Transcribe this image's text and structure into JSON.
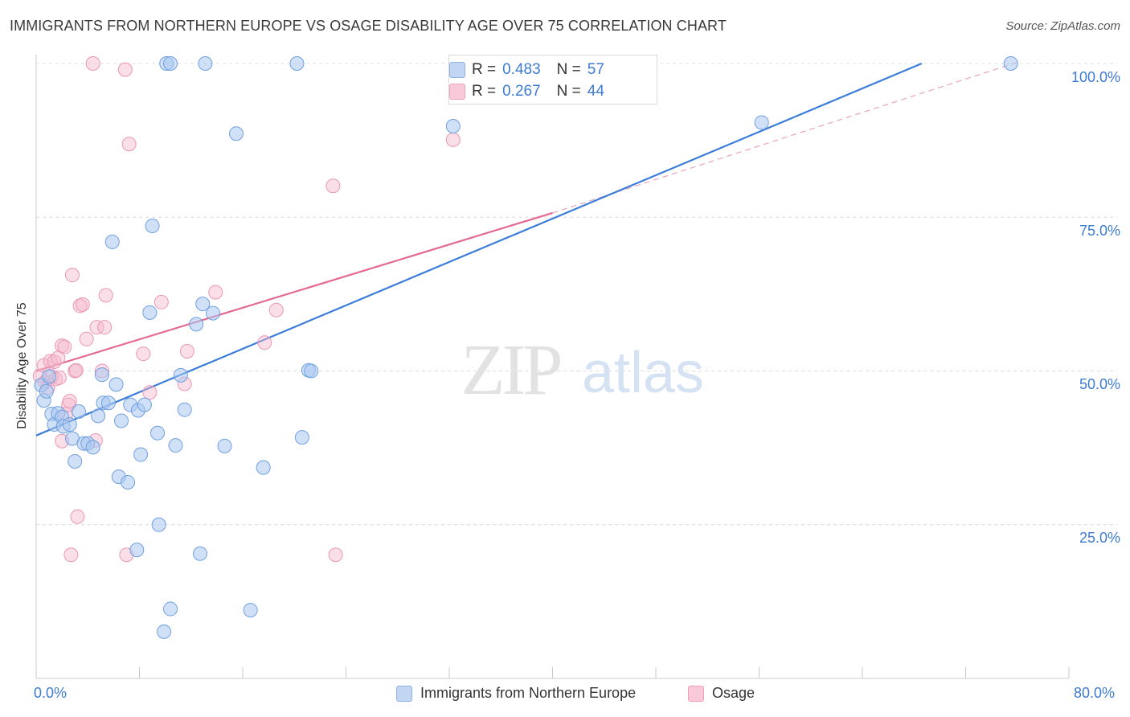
{
  "title": "IMMIGRANTS FROM NORTHERN EUROPE VS OSAGE DISABILITY AGE OVER 75 CORRELATION CHART",
  "source": "Source: ZipAtlas.com",
  "watermark": {
    "zip": "ZIP",
    "atlas": "atlas"
  },
  "colors": {
    "blue": "#3b7dd8",
    "blue_fill": "#aac8f0",
    "pink": "#e46a93",
    "pink_fill": "#f5b7cb",
    "tick_text": "#3d7bd0"
  },
  "stats": {
    "blue": {
      "r_label": "R =",
      "r_value": "0.483",
      "n_label": "N =",
      "n_value": "57"
    },
    "pink": {
      "r_label": "R =",
      "r_value": "0.267",
      "n_label": "N =",
      "n_value": "44"
    }
  },
  "legend": {
    "blue": "Immigrants from Northern Europe",
    "pink": "Osage"
  },
  "axis": {
    "x_min_label": "0.0%",
    "x_max_label": "80.0%",
    "y_tick_labels": [
      "100.0%",
      "75.0%",
      "50.0%",
      "25.0%"
    ]
  },
  "chart_data": {
    "type": "scatter",
    "title": "IMMIGRANTS FROM NORTHERN EUROPE VS OSAGE DISABILITY AGE OVER 75 CORRELATION CHART",
    "xlabel": "",
    "ylabel": "Disability Age Over 75",
    "xlim": [
      0,
      80
    ],
    "ylim": [
      0,
      100
    ],
    "x_ticks": [
      0,
      8,
      16,
      24,
      32,
      40,
      48,
      56,
      64,
      72,
      80
    ],
    "y_ticks": [
      25,
      50,
      75,
      100
    ],
    "grid": true,
    "series": [
      {
        "name": "Immigrants from Northern Europe",
        "color": "#3b7dd8",
        "points": [
          [
            0.4,
            47.7
          ],
          [
            0.6,
            45.2
          ],
          [
            0.8,
            46.7
          ],
          [
            1.0,
            49.1
          ],
          [
            1.2,
            43.0
          ],
          [
            1.4,
            41.3
          ],
          [
            1.7,
            43.1
          ],
          [
            2.0,
            42.5
          ],
          [
            2.1,
            41.0
          ],
          [
            2.6,
            41.3
          ],
          [
            2.8,
            39.0
          ],
          [
            3.0,
            35.3
          ],
          [
            3.3,
            43.4
          ],
          [
            3.7,
            38.2
          ],
          [
            4.0,
            38.2
          ],
          [
            4.4,
            37.6
          ],
          [
            4.8,
            42.7
          ],
          [
            5.1,
            49.4
          ],
          [
            5.2,
            44.8
          ],
          [
            5.6,
            44.8
          ],
          [
            5.9,
            71.0
          ],
          [
            6.2,
            47.8
          ],
          [
            6.4,
            32.8
          ],
          [
            6.6,
            41.9
          ],
          [
            7.1,
            31.9
          ],
          [
            7.3,
            44.5
          ],
          [
            7.8,
            20.9
          ],
          [
            7.9,
            43.6
          ],
          [
            8.1,
            36.4
          ],
          [
            8.4,
            44.5
          ],
          [
            8.8,
            59.5
          ],
          [
            9.0,
            73.6
          ],
          [
            9.4,
            39.9
          ],
          [
            9.5,
            25.0
          ],
          [
            9.9,
            7.6
          ],
          [
            10.1,
            100.0
          ],
          [
            10.4,
            11.3
          ],
          [
            10.4,
            100.0
          ],
          [
            10.8,
            37.9
          ],
          [
            11.2,
            49.3
          ],
          [
            11.5,
            43.7
          ],
          [
            12.4,
            57.6
          ],
          [
            12.7,
            20.3
          ],
          [
            12.9,
            60.9
          ],
          [
            13.1,
            100.0
          ],
          [
            13.7,
            59.4
          ],
          [
            14.6,
            37.8
          ],
          [
            15.5,
            88.6
          ],
          [
            16.6,
            11.1
          ],
          [
            17.6,
            34.3
          ],
          [
            20.2,
            100.0
          ],
          [
            20.6,
            39.2
          ],
          [
            21.1,
            50.1
          ],
          [
            21.3,
            50.0
          ],
          [
            32.3,
            89.8
          ],
          [
            56.2,
            90.4
          ],
          [
            75.5,
            100.0
          ]
        ],
        "trend": {
          "x0": 0,
          "y0": 39.5,
          "x1": 68.6,
          "y1": 100.0
        }
      },
      {
        "name": "Osage",
        "color": "#e46a93",
        "points": [
          [
            0.3,
            49.2
          ],
          [
            0.6,
            50.9
          ],
          [
            0.7,
            48.2
          ],
          [
            0.9,
            47.3
          ],
          [
            1.1,
            51.6
          ],
          [
            1.2,
            49.1
          ],
          [
            1.4,
            51.5
          ],
          [
            1.5,
            48.7
          ],
          [
            1.7,
            52.1
          ],
          [
            1.8,
            48.9
          ],
          [
            2.0,
            54.1
          ],
          [
            2.0,
            38.6
          ],
          [
            2.2,
            53.9
          ],
          [
            2.3,
            43.0
          ],
          [
            2.5,
            44.5
          ],
          [
            2.6,
            45.1
          ],
          [
            2.7,
            20.1
          ],
          [
            2.8,
            65.6
          ],
          [
            3.0,
            50.0
          ],
          [
            3.1,
            50.1
          ],
          [
            3.2,
            26.3
          ],
          [
            3.4,
            60.6
          ],
          [
            3.6,
            60.8
          ],
          [
            3.9,
            55.2
          ],
          [
            4.4,
            100.0
          ],
          [
            4.6,
            38.7
          ],
          [
            4.7,
            57.1
          ],
          [
            5.1,
            50.0
          ],
          [
            5.3,
            57.1
          ],
          [
            5.4,
            62.3
          ],
          [
            6.9,
            99.0
          ],
          [
            7.0,
            20.1
          ],
          [
            7.2,
            86.9
          ],
          [
            8.3,
            52.8
          ],
          [
            8.8,
            46.5
          ],
          [
            9.7,
            61.2
          ],
          [
            11.5,
            47.9
          ],
          [
            11.7,
            53.2
          ],
          [
            13.9,
            62.8
          ],
          [
            17.7,
            54.6
          ],
          [
            18.6,
            59.9
          ],
          [
            23.0,
            80.1
          ],
          [
            23.2,
            20.1
          ],
          [
            32.3,
            87.6
          ]
        ],
        "trend": {
          "x0": 0,
          "y0": 50.0,
          "x1": 40.0,
          "y1": 75.7
        },
        "trend_dashed": {
          "x0": 40.0,
          "y0": 75.7,
          "x1": 76.0,
          "y1": 100.2
        }
      }
    ]
  }
}
